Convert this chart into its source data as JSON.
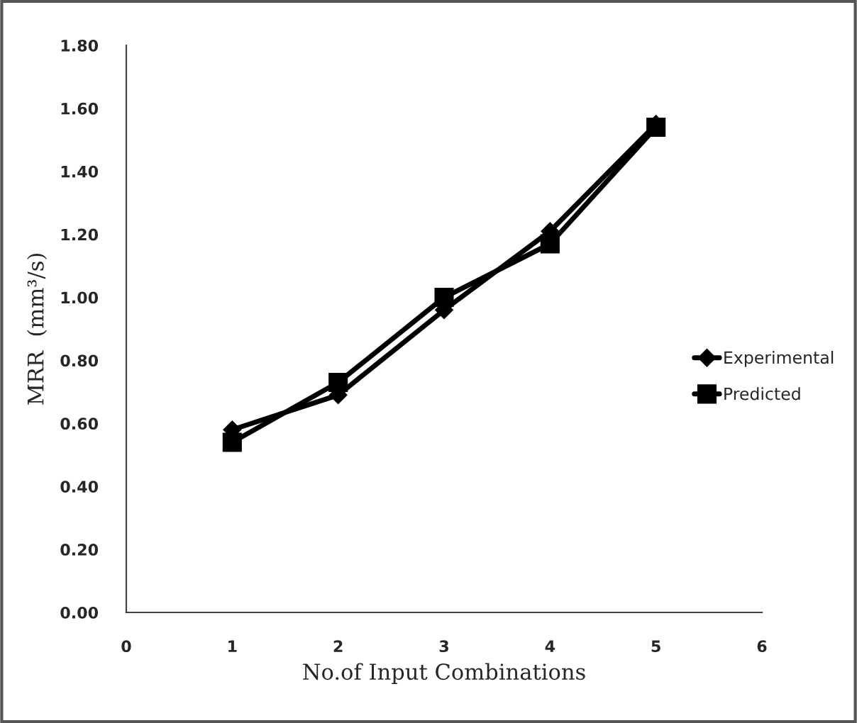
{
  "chart_data": {
    "type": "line",
    "xlabel": "No.of Input Combinations",
    "ylabel": "MRR  (mm³/s)",
    "x": [
      1,
      2,
      3,
      4,
      5
    ],
    "series": [
      {
        "name": "Experimental",
        "color": "#000000",
        "marker": "diamond",
        "values": [
          0.58,
          0.69,
          0.96,
          1.21,
          1.55
        ]
      },
      {
        "name": "Predicted",
        "color": "#000000",
        "marker": "square",
        "values": [
          0.54,
          0.73,
          1.0,
          1.17,
          1.54
        ]
      }
    ],
    "xlim": [
      0,
      6
    ],
    "xticks": [
      0,
      1,
      2,
      3,
      4,
      5,
      6
    ],
    "ylim": [
      0,
      1.8
    ],
    "yticks": [
      {
        "value": 0,
        "label": "0.00"
      },
      {
        "value": 0.2,
        "label": "0.20"
      },
      {
        "value": 0.4,
        "label": "0.40"
      },
      {
        "value": 0.6,
        "label": "0.60"
      },
      {
        "value": 0.8,
        "label": "0.80"
      },
      {
        "value": 1.0,
        "label": "1.00"
      },
      {
        "value": 1.2,
        "label": "1.20"
      },
      {
        "value": 1.4,
        "label": "1.40"
      },
      {
        "value": 1.6,
        "label": "1.60"
      },
      {
        "value": 1.8,
        "label": "1.80"
      }
    ],
    "grid": false,
    "legend": "right",
    "line_style": "solid"
  }
}
